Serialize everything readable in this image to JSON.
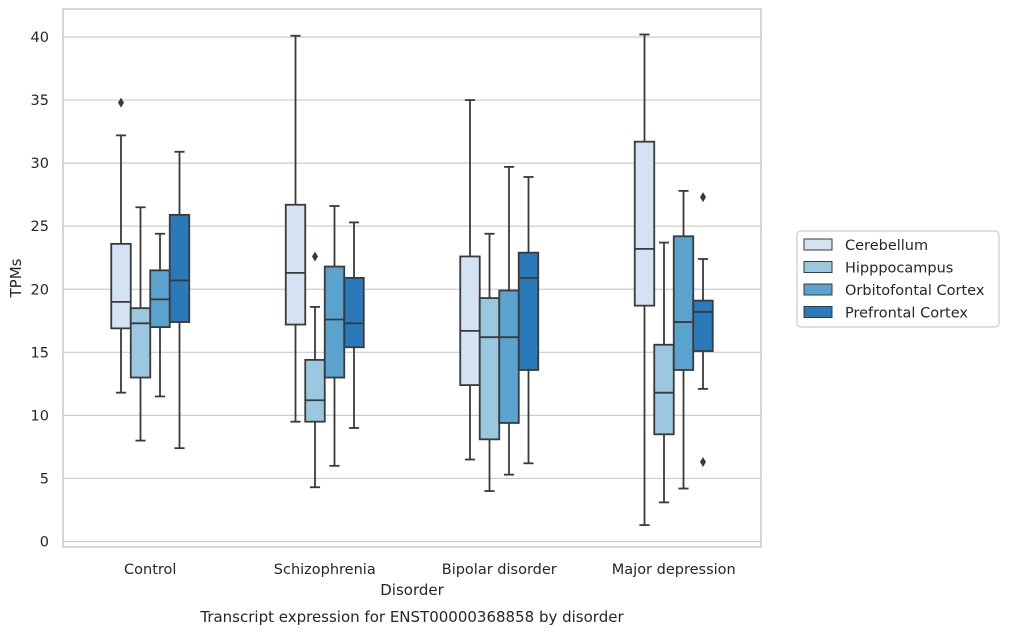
{
  "chart_data": {
    "type": "box",
    "caption": "Transcript expression for ENST00000368858 by disorder",
    "xlabel": "Disorder",
    "ylabel": "TPMs",
    "ylim": [
      -0.4,
      42.2
    ],
    "yticks": [
      0,
      5,
      10,
      15,
      20,
      25,
      30,
      35,
      40
    ],
    "grid": "horizontal",
    "legend_position": "right",
    "categories": [
      "Control",
      "Schizophrenia",
      "Bipolar disorder",
      "Major depression"
    ],
    "series": [
      {
        "name": "Cerebellum",
        "color": "#d3e3f3",
        "boxes": [
          {
            "whislo": 11.8,
            "q1": 16.9,
            "med": 19.0,
            "q3": 23.6,
            "whishi": 32.2,
            "fliers": [
              34.8
            ]
          },
          {
            "whislo": 9.5,
            "q1": 17.2,
            "med": 21.3,
            "q3": 26.7,
            "whishi": 40.1,
            "fliers": []
          },
          {
            "whislo": 6.5,
            "q1": 12.4,
            "med": 16.7,
            "q3": 22.6,
            "whishi": 35.0,
            "fliers": []
          },
          {
            "whislo": 1.3,
            "q1": 18.7,
            "med": 23.2,
            "q3": 31.7,
            "whishi": 40.2,
            "fliers": []
          }
        ]
      },
      {
        "name": "Hipppocampus",
        "color": "#9ac8e0",
        "boxes": [
          {
            "whislo": 8.0,
            "q1": 13.0,
            "med": 17.3,
            "q3": 18.5,
            "whishi": 26.5,
            "fliers": []
          },
          {
            "whislo": 4.3,
            "q1": 9.5,
            "med": 11.2,
            "q3": 14.4,
            "whishi": 18.6,
            "fliers": [
              22.6
            ]
          },
          {
            "whislo": 4.0,
            "q1": 8.1,
            "med": 16.2,
            "q3": 19.3,
            "whishi": 24.4,
            "fliers": []
          },
          {
            "whislo": 3.1,
            "q1": 8.5,
            "med": 11.8,
            "q3": 15.6,
            "whishi": 23.7,
            "fliers": []
          }
        ]
      },
      {
        "name": "Orbitofontal Cortex",
        "color": "#5ba3cf",
        "boxes": [
          {
            "whislo": 11.5,
            "q1": 17.0,
            "med": 19.2,
            "q3": 21.5,
            "whishi": 24.4,
            "fliers": []
          },
          {
            "whislo": 6.0,
            "q1": 13.0,
            "med": 17.6,
            "q3": 21.8,
            "whishi": 26.6,
            "fliers": []
          },
          {
            "whislo": 5.3,
            "q1": 9.4,
            "med": 16.2,
            "q3": 19.9,
            "whishi": 29.7,
            "fliers": []
          },
          {
            "whislo": 4.2,
            "q1": 13.6,
            "med": 17.4,
            "q3": 24.2,
            "whishi": 27.8,
            "fliers": []
          }
        ]
      },
      {
        "name": "Prefrontal Cortex",
        "color": "#2a7ab9",
        "boxes": [
          {
            "whislo": 7.4,
            "q1": 17.4,
            "med": 20.7,
            "q3": 25.9,
            "whishi": 30.9,
            "fliers": []
          },
          {
            "whislo": 9.0,
            "q1": 15.4,
            "med": 17.3,
            "q3": 20.9,
            "whishi": 25.3,
            "fliers": []
          },
          {
            "whislo": 6.2,
            "q1": 13.6,
            "med": 20.9,
            "q3": 22.9,
            "whishi": 28.9,
            "fliers": []
          },
          {
            "whislo": 12.1,
            "q1": 15.1,
            "med": 18.2,
            "q3": 19.1,
            "whishi": 22.4,
            "fliers": [
              27.3,
              6.3
            ]
          }
        ]
      }
    ]
  }
}
